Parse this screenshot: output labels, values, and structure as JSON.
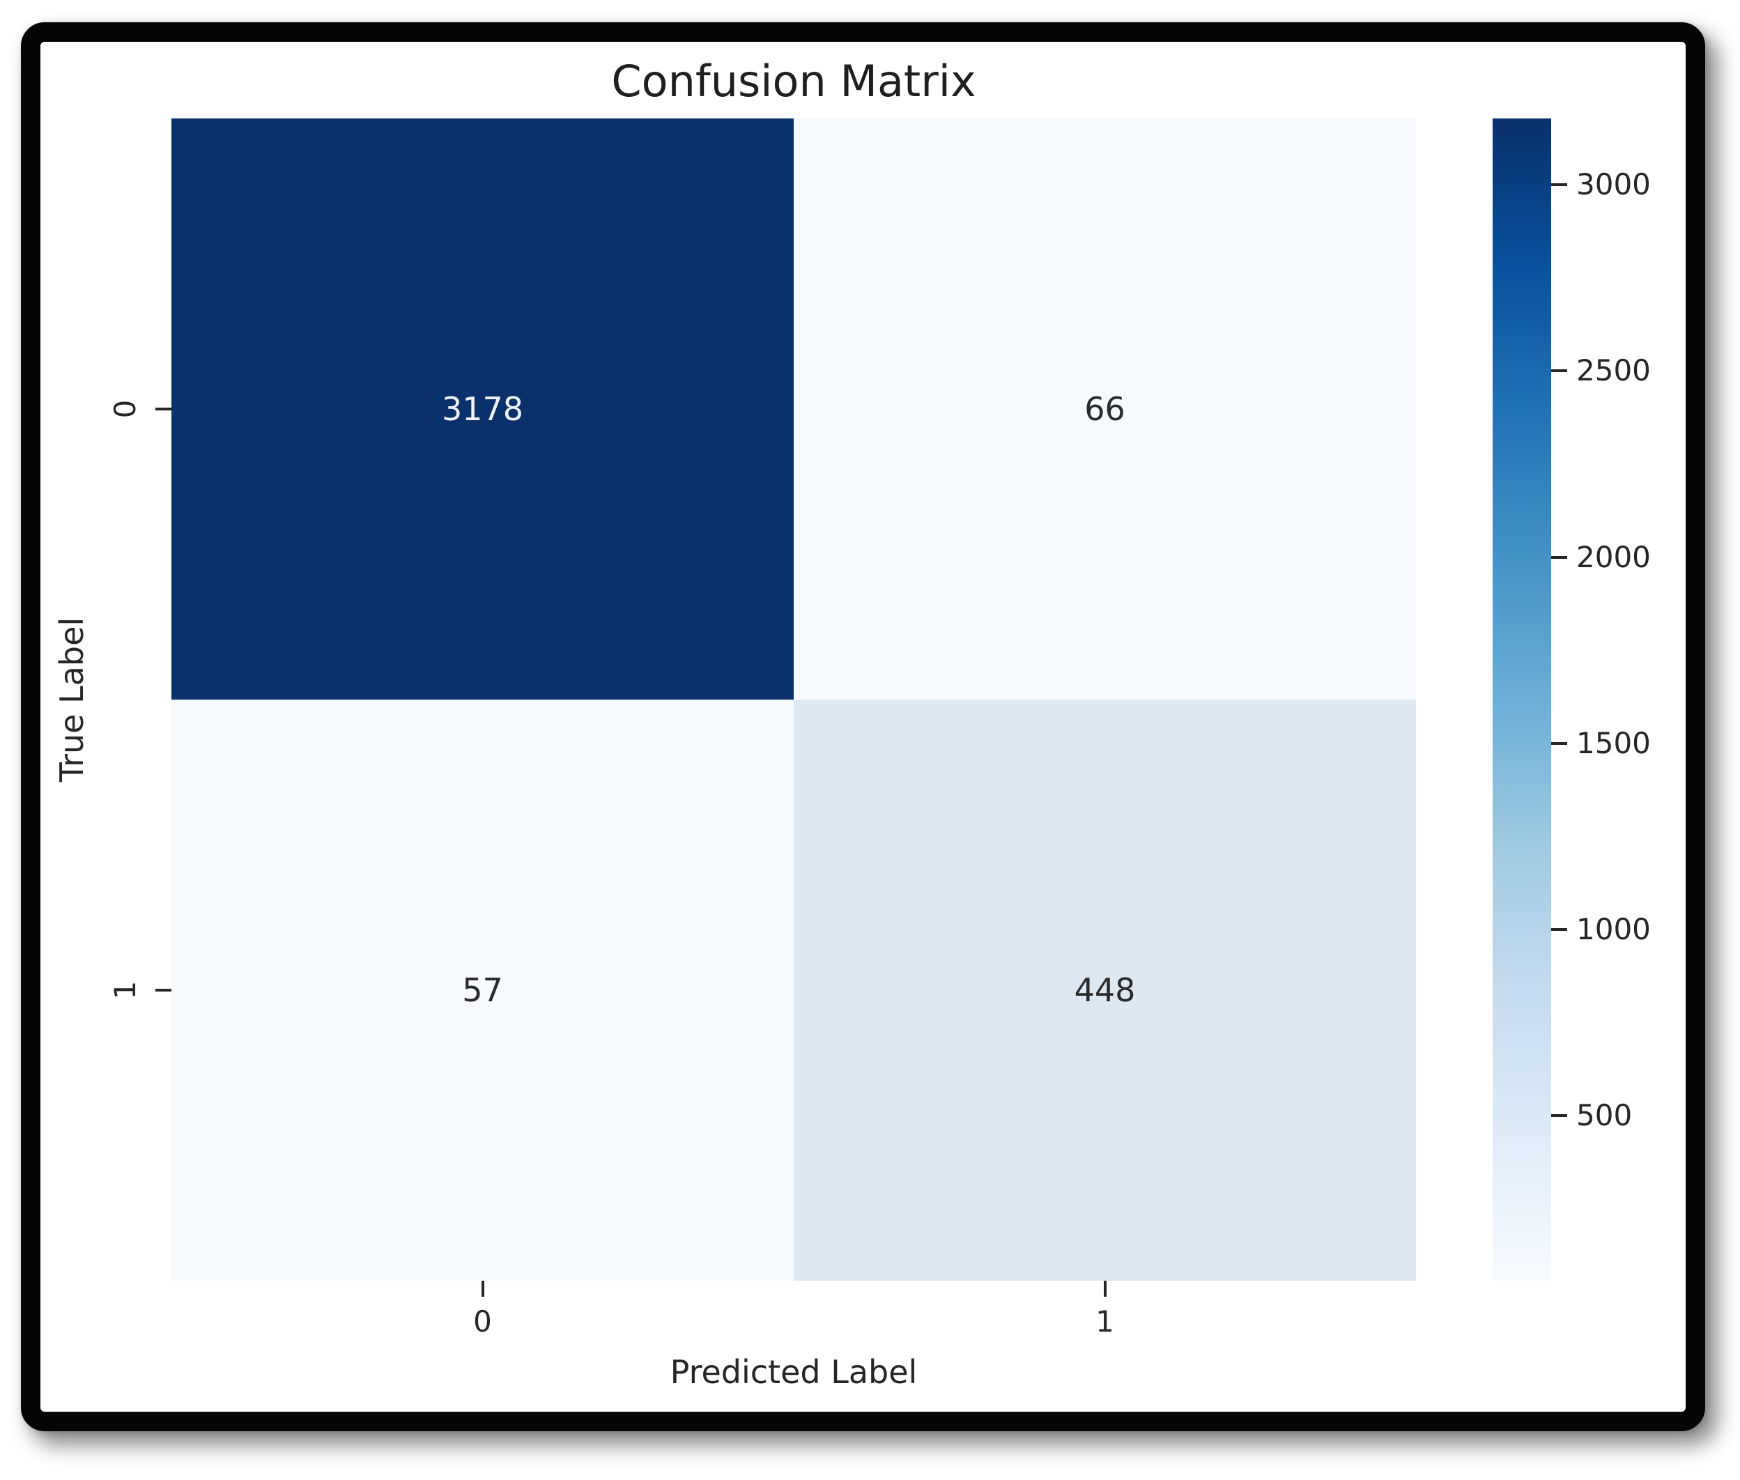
{
  "figure": {
    "background_color": "#ffffff",
    "frame_color": "#050505",
    "text_color": "#262626"
  },
  "chart_data": {
    "type": "heatmap",
    "title": "Confusion Matrix",
    "xlabel": "Predicted Label",
    "ylabel": "True Label",
    "x_tick_labels": [
      "0",
      "1"
    ],
    "y_tick_labels": [
      "0",
      "1"
    ],
    "matrix": [
      [
        3178,
        66
      ],
      [
        57,
        448
      ]
    ],
    "vmin": 57,
    "vmax": 3178,
    "colormap": "Blues",
    "colorbar_ticks": [
      3000,
      2500,
      2000,
      1500,
      1000,
      500
    ],
    "colorbar_position": "right",
    "grid": false,
    "cell_colors": [
      [
        "#0a316b",
        "#f6f9fd"
      ],
      [
        "#f6f9fd",
        "#dee8f3"
      ]
    ],
    "cell_text_colors": [
      [
        "#eef1f5",
        "#2a2a2a"
      ],
      [
        "#2a2a2a",
        "#2a2a2a"
      ]
    ],
    "colorbar_gradient_top_to_bottom": [
      "#08306b",
      "#08519c",
      "#2171b5",
      "#4292c6",
      "#6baed6",
      "#9ecae1",
      "#c6dbef",
      "#deebf7",
      "#f7fbff"
    ]
  }
}
